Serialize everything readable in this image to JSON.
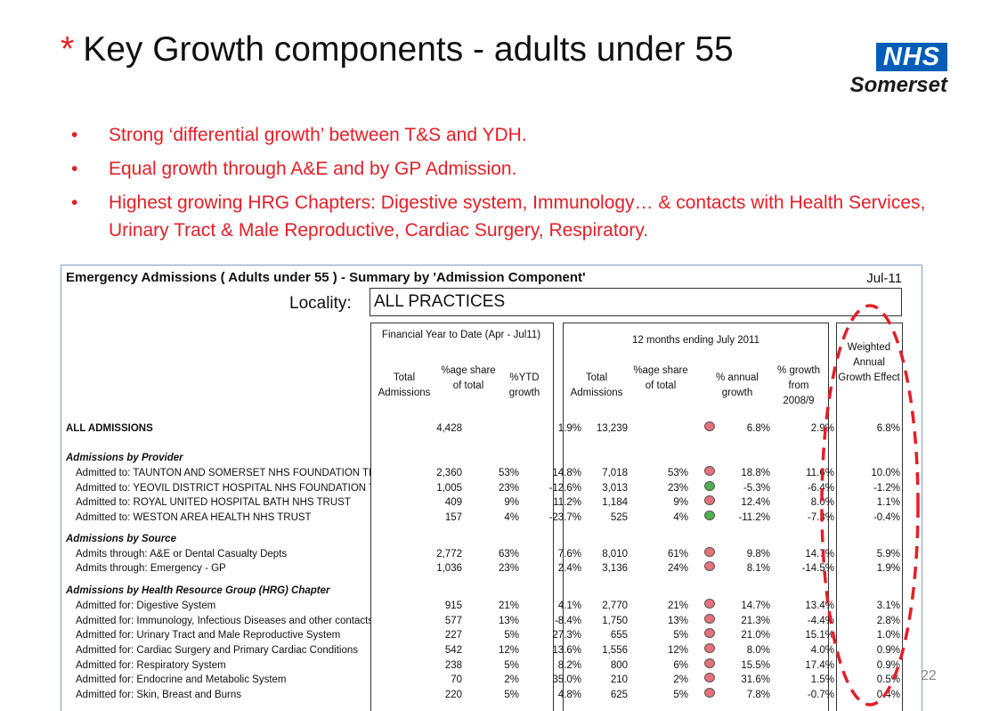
{
  "slide": {
    "title_marker": "*",
    "title": "Key Growth components - adults under 55",
    "logo_nhs": "NHS",
    "logo_org": "Somerset",
    "bullets": [
      "Strong ‘differential growth’ between T&S and YDH.",
      "Equal growth through A&E and by GP Admission.",
      "Highest growing HRG Chapters: Digestive system, Immunology… & contacts with Health Services, Urinary Tract & Male Reproductive, Cardiac Surgery, Respiratory."
    ],
    "page_number": "22",
    "highlight_color": "#e41e26"
  },
  "sheet": {
    "title": "Emergency Admissions ( Adults under 55 ) - Summary by 'Admission Component'",
    "date": "Jul-11",
    "locality_label": "Locality:",
    "locality_value": "ALL PRACTICES",
    "groups": {
      "fytd": "Financial Year to Date (Apr - Jul11)",
      "twelve": "12 months ending July 2011",
      "weighted": "Weighted Annual Growth Effect"
    },
    "columns": {
      "total_adm": "Total Admissions",
      "share": "%age share of total",
      "ytd": "%YTD growth",
      "total_adm2": "Total Admissions",
      "share2": "%age share of total",
      "annual": "% annual growth",
      "growth0809": "% growth from 2008/9"
    },
    "rows": {
      "all": {
        "label": "ALL ADMISSIONS",
        "ytd_total": "4,428",
        "ytd_share": "",
        "ytd_growth": "1.9%",
        "total_12m": "13,239",
        "share_12m": "",
        "indicator": "red",
        "annual": "6.8%",
        "growth0809": "2.9%",
        "weighted": "6.8%"
      },
      "provider_header": "Admissions by Provider",
      "provider": [
        {
          "label": "Admitted to: TAUNTON AND SOMERSET NHS FOUNDATION TRUST",
          "ytd_total": "2,360",
          "ytd_share": "53%",
          "ytd_growth": "14.8%",
          "total_12m": "7,018",
          "share_12m": "53%",
          "indicator": "red",
          "annual": "18.8%",
          "growth0809": "11.6%",
          "weighted": "10.0%"
        },
        {
          "label": "Admitted to: YEOVIL DISTRICT HOSPITAL NHS FOUNDATION TRUST",
          "ytd_total": "1,005",
          "ytd_share": "23%",
          "ytd_growth": "-12.6%",
          "total_12m": "3,013",
          "share_12m": "23%",
          "indicator": "green",
          "annual": "-5.3%",
          "growth0809": "-6.4%",
          "weighted": "-1.2%"
        },
        {
          "label": "Admitted to: ROYAL UNITED HOSPITAL BATH NHS TRUST",
          "ytd_total": "409",
          "ytd_share": "9%",
          "ytd_growth": "11.2%",
          "total_12m": "1,184",
          "share_12m": "9%",
          "indicator": "red",
          "annual": "12.4%",
          "growth0809": "8.0%",
          "weighted": "1.1%"
        },
        {
          "label": "Admitted to: WESTON AREA HEALTH NHS TRUST",
          "ytd_total": "157",
          "ytd_share": "4%",
          "ytd_growth": "-23.7%",
          "total_12m": "525",
          "share_12m": "4%",
          "indicator": "green",
          "annual": "-11.2%",
          "growth0809": "-7.3%",
          "weighted": "-0.4%"
        }
      ],
      "source_header": "Admissions by Source",
      "source": [
        {
          "label": "Admits through: A&E or Dental Casualty Depts",
          "ytd_total": "2,772",
          "ytd_share": "63%",
          "ytd_growth": "7.6%",
          "total_12m": "8,010",
          "share_12m": "61%",
          "indicator": "red",
          "annual": "9.8%",
          "growth0809": "14.7%",
          "weighted": "5.9%"
        },
        {
          "label": "Admits through: Emergency - GP",
          "ytd_total": "1,036",
          "ytd_share": "23%",
          "ytd_growth": "2.4%",
          "total_12m": "3,136",
          "share_12m": "24%",
          "indicator": "red",
          "annual": "8.1%",
          "growth0809": "-14.5%",
          "weighted": "1.9%"
        }
      ],
      "hrg_header": "Admissions by Health Resource Group (HRG) Chapter",
      "hrg": [
        {
          "label": "Admitted for: Digestive System",
          "ytd_total": "915",
          "ytd_share": "21%",
          "ytd_growth": "4.1%",
          "total_12m": "2,770",
          "share_12m": "21%",
          "indicator": "red",
          "annual": "14.7%",
          "growth0809": "13.4%",
          "weighted": "3.1%"
        },
        {
          "label": "Admitted for: Immunology, Infectious Diseases and other contacts",
          "ytd_total": "577",
          "ytd_share": "13%",
          "ytd_growth": "-8.4%",
          "total_12m": "1,750",
          "share_12m": "13%",
          "indicator": "red",
          "annual": "21.3%",
          "growth0809": "-4.4%",
          "weighted": "2.8%"
        },
        {
          "label": "Admitted for: Urinary Tract and Male Reproductive System",
          "ytd_total": "227",
          "ytd_share": "5%",
          "ytd_growth": "27.3%",
          "total_12m": "655",
          "share_12m": "5%",
          "indicator": "red",
          "annual": "21.0%",
          "growth0809": "15.1%",
          "weighted": "1.0%"
        },
        {
          "label": "Admitted for: Cardiac Surgery and Primary Cardiac Conditions",
          "ytd_total": "542",
          "ytd_share": "12%",
          "ytd_growth": "13.6%",
          "total_12m": "1,556",
          "share_12m": "12%",
          "indicator": "red",
          "annual": "8.0%",
          "growth0809": "4.0%",
          "weighted": "0.9%"
        },
        {
          "label": "Admitted for: Respiratory System",
          "ytd_total": "238",
          "ytd_share": "5%",
          "ytd_growth": "8.2%",
          "total_12m": "800",
          "share_12m": "6%",
          "indicator": "red",
          "annual": "15.5%",
          "growth0809": "17.4%",
          "weighted": "0.9%"
        },
        {
          "label": "Admitted for: Endocrine and Metabolic System",
          "ytd_total": "70",
          "ytd_share": "2%",
          "ytd_growth": "35.0%",
          "total_12m": "210",
          "share_12m": "2%",
          "indicator": "red",
          "annual": "31.6%",
          "growth0809": "1.5%",
          "weighted": "0.5%"
        },
        {
          "label": "Admitted for: Skin, Breast and Burns",
          "ytd_total": "220",
          "ytd_share": "5%",
          "ytd_growth": "4.8%",
          "total_12m": "625",
          "share_12m": "5%",
          "indicator": "red",
          "annual": "7.8%",
          "growth0809": "-0.7%",
          "weighted": "0.4%"
        }
      ]
    }
  }
}
